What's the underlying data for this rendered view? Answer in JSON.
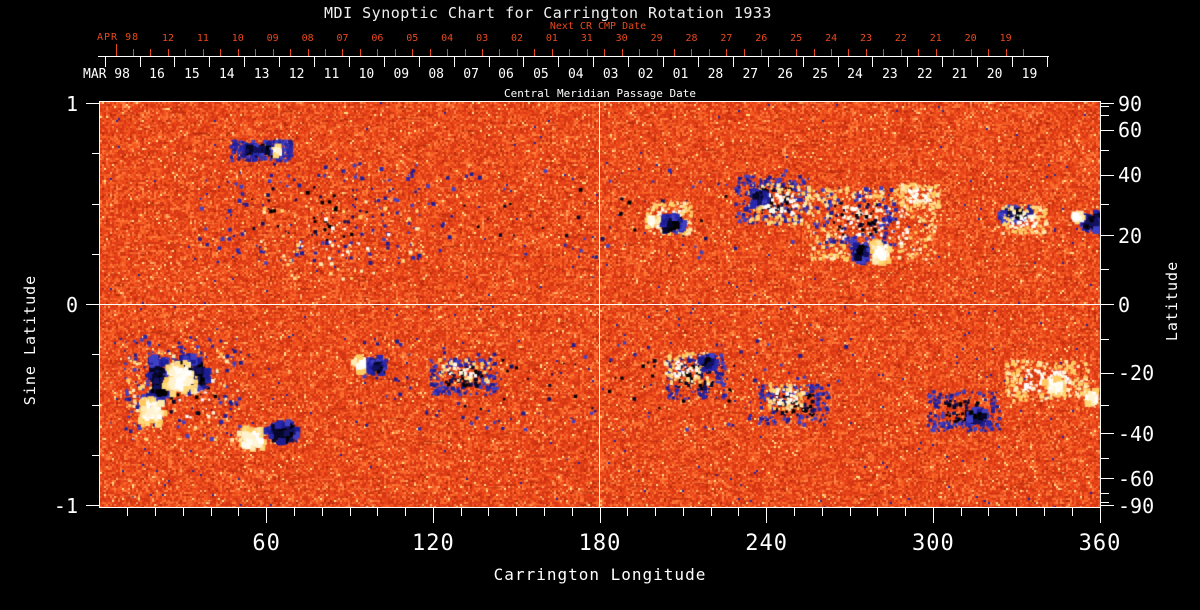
{
  "title": "MDI Synoptic Chart for Carrington Rotation 1933",
  "colors": {
    "background": "#000000",
    "foreground": "#ffffff",
    "next_cr_accent": "#e8491c"
  },
  "chart_data": {
    "type": "heatmap",
    "title": "MDI Synoptic Chart for Carrington Rotation 1933",
    "carrington_rotation": 1933,
    "xlabel": "Carrington Longitude",
    "xlim": [
      0,
      360
    ],
    "x_major_ticks": [
      60,
      120,
      180,
      240,
      300,
      360
    ],
    "x_minor_tick_step_deg": 10,
    "ylabel_left": "Sine Latitude",
    "ylim_sine_latitude": [
      -1,
      1
    ],
    "y_left_major_ticks": [
      1,
      0,
      -1
    ],
    "y_left_minor_tick_step": 0.25,
    "ylabel_right": "Latitude",
    "y_right_tick_labels": [
      90,
      60,
      40,
      20,
      0,
      -20,
      -40,
      -60,
      -90
    ],
    "y_right_minor_ticks_deg": [
      80,
      70,
      50,
      30,
      10,
      -10,
      -30,
      -50,
      -70,
      -80
    ],
    "grid": false,
    "legend": false,
    "reference_lines": {
      "vertical_longitude_deg": 180,
      "horizontal_sine_latitude": 0
    },
    "top_axis": {
      "label": "Central Meridian Passage Date",
      "current_rotation_month": "MAR 98",
      "current_rotation_days": [
        "16",
        "15",
        "14",
        "13",
        "12",
        "11",
        "10",
        "09",
        "08",
        "07",
        "06",
        "05",
        "04",
        "03",
        "02",
        "01",
        "28",
        "27",
        "26",
        "25",
        "24",
        "23",
        "22",
        "21",
        "20",
        "19"
      ],
      "next_rotation_label": "Next CR CMP Date",
      "next_rotation_month": "APR 98",
      "next_rotation_days": [
        "12",
        "11",
        "10",
        "09",
        "08",
        "07",
        "06",
        "05",
        "04",
        "03",
        "02",
        "01",
        "31",
        "30",
        "29",
        "28",
        "27",
        "26",
        "25",
        "24",
        "23",
        "22",
        "21",
        "20",
        "19"
      ]
    },
    "colormap": {
      "background_noise": [
        "#d63613",
        "#e8441a",
        "#f2571f",
        "#fb6c2e",
        "#ff823f",
        "#b72a0c",
        "#ffab66",
        "#ffe08a",
        "#26269a"
      ],
      "noise_weights": [
        0.27,
        0.27,
        0.2,
        0.13,
        0.07,
        0.025,
        0.02,
        0.012,
        0.003
      ],
      "streak_colors": [
        "#a82609",
        "#ff8c4a",
        "#c63311",
        "#ff7a35"
      ],
      "negative_polarity_core": [
        "#000000",
        "#07072a",
        "#12125e"
      ],
      "negative_polarity_fringe": [
        "#2828ae",
        "#1d1d93",
        "#4040c4"
      ],
      "positive_polarity_core": [
        "#ffffff",
        "#fffcf0",
        "#fff3cf"
      ],
      "positive_polarity_fringe": [
        "#ffd879",
        "#ffeab2",
        "#ffc95f"
      ]
    },
    "active_regions_format": "[longitude_deg, sine_latitude, width_deg, height_sine, polarity(neg|pos|negS=neg-speckle|posS=pos-speckle), blob_count]",
    "active_regions": [
      [
        180,
        0.45,
        178,
        0.45,
        "negS",
        90
      ],
      [
        180,
        -0.4,
        178,
        0.45,
        "negS",
        120
      ],
      [
        75,
        0.45,
        80,
        0.5,
        "negS",
        150
      ],
      [
        88,
        0.32,
        60,
        0.4,
        "posS",
        70
      ],
      [
        58,
        0.765,
        22,
        0.1,
        "negS",
        240
      ],
      [
        57,
        0.77,
        15,
        0.05,
        "neg",
        70
      ],
      [
        64,
        0.765,
        4,
        0.05,
        "pos",
        22
      ],
      [
        205,
        0.43,
        16,
        0.16,
        "posS",
        120
      ],
      [
        206,
        0.4,
        9,
        0.1,
        "neg",
        80
      ],
      [
        199,
        0.41,
        5,
        0.06,
        "pos",
        28
      ],
      [
        242,
        0.52,
        26,
        0.24,
        "negS",
        230
      ],
      [
        245,
        0.5,
        22,
        0.2,
        "posS",
        150
      ],
      [
        237,
        0.53,
        7,
        0.08,
        "neg",
        55
      ],
      [
        278,
        0.4,
        46,
        0.36,
        "posS",
        400
      ],
      [
        272,
        0.43,
        30,
        0.3,
        "negS",
        150
      ],
      [
        295,
        0.54,
        15,
        0.12,
        "posS",
        110
      ],
      [
        274,
        0.26,
        7,
        0.11,
        "neg",
        100
      ],
      [
        281,
        0.26,
        7,
        0.11,
        "pos",
        100
      ],
      [
        330,
        0.45,
        13,
        0.09,
        "neg",
        75
      ],
      [
        333,
        0.42,
        16,
        0.14,
        "posS",
        130
      ],
      [
        357,
        0.41,
        8,
        0.11,
        "neg",
        90
      ],
      [
        352,
        0.43,
        4,
        0.06,
        "pos",
        22
      ],
      [
        30,
        -0.42,
        42,
        0.52,
        "negS",
        150
      ],
      [
        30,
        -0.46,
        40,
        0.45,
        "posS",
        110
      ],
      [
        21,
        -0.38,
        8,
        0.26,
        "neg",
        130
      ],
      [
        33,
        -0.35,
        15,
        0.2,
        "neg",
        170
      ],
      [
        29,
        -0.37,
        12,
        0.18,
        "pos",
        150
      ],
      [
        19,
        -0.53,
        10,
        0.16,
        "pos",
        95
      ],
      [
        55,
        -0.67,
        11,
        0.13,
        "pos",
        115
      ],
      [
        66,
        -0.64,
        13,
        0.13,
        "neg",
        125
      ],
      [
        94,
        -0.3,
        6,
        0.09,
        "pos",
        55
      ],
      [
        100,
        -0.31,
        7,
        0.09,
        "neg",
        65
      ],
      [
        131,
        -0.36,
        24,
        0.18,
        "negS",
        190
      ],
      [
        130,
        -0.33,
        20,
        0.12,
        "posS",
        60
      ],
      [
        215,
        -0.36,
        22,
        0.22,
        "negS",
        160
      ],
      [
        211,
        -0.32,
        16,
        0.16,
        "posS",
        110
      ],
      [
        219,
        -0.29,
        7,
        0.08,
        "neg",
        55
      ],
      [
        250,
        -0.5,
        26,
        0.2,
        "negS",
        180
      ],
      [
        247,
        -0.46,
        14,
        0.13,
        "posS",
        90
      ],
      [
        311,
        -0.53,
        26,
        0.2,
        "negS",
        190
      ],
      [
        316,
        -0.56,
        9,
        0.09,
        "neg",
        65
      ],
      [
        341,
        -0.38,
        30,
        0.2,
        "posS",
        280
      ],
      [
        344,
        -0.41,
        8,
        0.09,
        "pos",
        75
      ],
      [
        357,
        -0.46,
        5,
        0.09,
        "pos",
        48
      ]
    ]
  }
}
